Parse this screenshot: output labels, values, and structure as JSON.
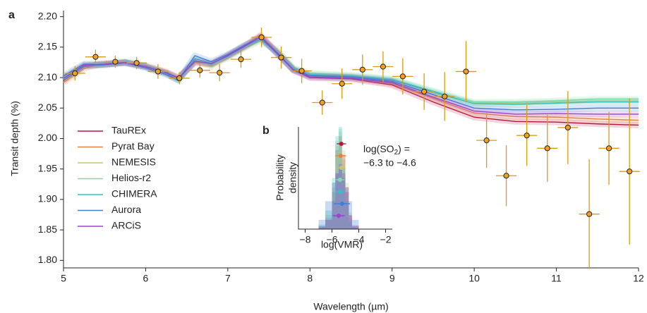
{
  "chart_data": [
    {
      "type": "line",
      "panel": "a",
      "xlabel": "Wavelength (µm)",
      "ylabel": "Transit depth (%)",
      "xlim": [
        5,
        12
      ],
      "ylim": [
        1.79,
        2.21
      ],
      "xticks": [
        5,
        6,
        7,
        8,
        9,
        10,
        11,
        12
      ],
      "yticks": [
        {
          "value": 1.8,
          "label": "1.80"
        },
        1.85,
        {
          "value": 1.9,
          "label": "1.90"
        },
        1.95,
        {
          "value": 2.0,
          "label": "2.00"
        },
        2.05,
        {
          "value": 2.1,
          "label": "2.10"
        },
        2.15,
        {
          "value": 2.2,
          "label": "2.20"
        }
      ],
      "x": [
        5.0,
        5.25,
        5.5,
        5.75,
        6.0,
        6.25,
        6.4,
        6.6,
        6.8,
        7.0,
        7.2,
        7.4,
        7.6,
        7.8,
        8.0,
        8.5,
        9.0,
        9.5,
        10.0,
        10.5,
        11.0,
        11.5,
        12.0
      ],
      "series": [
        {
          "name": "TauREx",
          "color": "#b8173d",
          "values": [
            2.095,
            2.118,
            2.122,
            2.125,
            2.118,
            2.108,
            2.1,
            2.125,
            2.122,
            2.135,
            2.15,
            2.168,
            2.14,
            2.112,
            2.1,
            2.098,
            2.088,
            2.06,
            2.035,
            2.028,
            2.027,
            2.024,
            2.022
          ]
        },
        {
          "name": "Pyrat Bay",
          "color": "#e8803e",
          "values": [
            2.092,
            2.115,
            2.124,
            2.124,
            2.12,
            2.11,
            2.098,
            2.126,
            2.12,
            2.137,
            2.152,
            2.17,
            2.142,
            2.113,
            2.103,
            2.1,
            2.09,
            2.066,
            2.042,
            2.036,
            2.035,
            2.032,
            2.03
          ]
        },
        {
          "name": "NEMESIS",
          "color": "#c9c46a",
          "values": [
            2.098,
            2.12,
            2.12,
            2.126,
            2.117,
            2.106,
            2.097,
            2.13,
            2.118,
            2.132,
            2.148,
            2.16,
            2.145,
            2.115,
            2.106,
            2.103,
            2.097,
            2.075,
            2.058,
            2.058,
            2.06,
            2.062,
            2.062
          ]
        },
        {
          "name": "Helios-r2",
          "color": "#7fdcae",
          "values": [
            2.1,
            2.122,
            2.123,
            2.127,
            2.119,
            2.108,
            2.096,
            2.128,
            2.121,
            2.134,
            2.15,
            2.162,
            2.143,
            2.116,
            2.107,
            2.104,
            2.098,
            2.078,
            2.06,
            2.06,
            2.062,
            2.065,
            2.065
          ]
        },
        {
          "name": "CHIMERA",
          "color": "#2ec2c6",
          "values": [
            2.097,
            2.119,
            2.121,
            2.125,
            2.118,
            2.107,
            2.095,
            2.131,
            2.123,
            2.136,
            2.152,
            2.163,
            2.141,
            2.114,
            2.104,
            2.102,
            2.096,
            2.077,
            2.057,
            2.056,
            2.058,
            2.06,
            2.06
          ]
        },
        {
          "name": "Aurora",
          "color": "#3d7fd6",
          "values": [
            2.103,
            2.122,
            2.121,
            2.124,
            2.116,
            2.105,
            2.096,
            2.136,
            2.126,
            2.138,
            2.153,
            2.166,
            2.139,
            2.113,
            2.103,
            2.101,
            2.094,
            2.072,
            2.05,
            2.047,
            2.048,
            2.05,
            2.05
          ]
        },
        {
          "name": "ARCiS",
          "color": "#9b3fd4",
          "values": [
            2.099,
            2.12,
            2.122,
            2.125,
            2.118,
            2.108,
            2.099,
            2.127,
            2.123,
            2.136,
            2.151,
            2.167,
            2.141,
            2.112,
            2.101,
            2.099,
            2.092,
            2.068,
            2.045,
            2.04,
            2.041,
            2.04,
            2.04
          ]
        }
      ],
      "observed": {
        "color": "#f0a020",
        "errcolor": "#e09a10",
        "x": [
          5.14,
          5.39,
          5.63,
          5.89,
          6.15,
          6.41,
          6.66,
          6.9,
          7.16,
          7.41,
          7.65,
          7.9,
          8.15,
          8.39,
          8.64,
          8.89,
          9.13,
          9.39,
          9.64,
          9.9,
          10.15,
          10.39,
          10.64,
          10.89,
          11.14,
          11.4,
          11.64,
          11.89
        ],
        "values": [
          2.107,
          2.134,
          2.126,
          2.124,
          2.11,
          2.099,
          2.112,
          2.108,
          2.13,
          2.166,
          2.133,
          2.111,
          2.059,
          2.09,
          2.113,
          2.118,
          2.102,
          2.077,
          2.069,
          2.11,
          1.997,
          1.939,
          2.005,
          1.984,
          2.018,
          1.876,
          1.984,
          1.946
        ],
        "xerr": [
          0.125,
          0.125,
          0.125,
          0.125,
          0.125,
          0.125,
          0.125,
          0.125,
          0.125,
          0.125,
          0.125,
          0.125,
          0.125,
          0.125,
          0.125,
          0.125,
          0.125,
          0.125,
          0.125,
          0.125,
          0.125,
          0.125,
          0.125,
          0.125,
          0.125,
          0.125,
          0.125,
          0.125
        ],
        "yerr": [
          0.012,
          0.012,
          0.01,
          0.01,
          0.012,
          0.01,
          0.012,
          0.014,
          0.014,
          0.016,
          0.018,
          0.02,
          0.02,
          0.025,
          0.025,
          0.025,
          0.03,
          0.03,
          0.04,
          0.05,
          0.045,
          0.05,
          0.05,
          0.055,
          0.06,
          0.09,
          0.06,
          0.12
        ]
      }
    },
    {
      "type": "histogram",
      "panel": "b",
      "xlabel": "log(VMR)",
      "ylabel": [
        "Probability",
        "density"
      ],
      "annotation": [
        "log(SO",
        "2",
        ") =",
        "−6.3 to −4.6"
      ],
      "xlim": [
        -8.5,
        -1.5
      ],
      "ylim": [
        0,
        1.1
      ],
      "xticks": [
        {
          "value": -8,
          "label": "−8"
        },
        {
          "value": -6,
          "label": "−6"
        },
        {
          "value": -4,
          "label": "−4"
        },
        {
          "value": -2,
          "label": "−2"
        }
      ],
      "bins": [
        -7,
        -6.5,
        -6,
        -5.75,
        -5.5,
        -5.25,
        -5,
        -4.75,
        -4.5,
        -4
      ],
      "series": [
        {
          "color": "#b8173d",
          "values": [
            0.02,
            0.1,
            0.4,
            0.85,
            1.0,
            0.8,
            0.45,
            0.15,
            0.03
          ],
          "median": -5.3,
          "error": 0.35
        },
        {
          "color": "#e8803e",
          "values": [
            0.03,
            0.12,
            0.45,
            0.9,
            0.95,
            0.75,
            0.4,
            0.12,
            0.02
          ],
          "median": -5.35,
          "error": 0.4
        },
        {
          "color": "#c9c46a",
          "values": [
            0.02,
            0.08,
            0.35,
            0.8,
            1.05,
            0.85,
            0.5,
            0.18,
            0.04
          ],
          "median": -5.3,
          "error": 0.3
        },
        {
          "color": "#7fdcae",
          "values": [
            0.05,
            0.15,
            0.5,
            0.95,
            1.08,
            0.7,
            0.35,
            0.1,
            0.02
          ],
          "median": -5.4,
          "error": 0.35
        },
        {
          "color": "#2ec2c6",
          "values": [
            0.04,
            0.2,
            0.55,
            1.0,
            1.1,
            0.65,
            0.3,
            0.08,
            0.02
          ],
          "median": -5.4,
          "error": 0.3
        },
        {
          "color": "#3d7fd6",
          "values": [
            0.1,
            0.3,
            0.5,
            0.6,
            0.65,
            0.55,
            0.45,
            0.3,
            0.1
          ],
          "median": -5.25,
          "error": 0.6
        },
        {
          "color": "#9b3fd4",
          "values": [
            0.03,
            0.1,
            0.3,
            0.6,
            0.7,
            0.6,
            0.4,
            0.15,
            0.04
          ],
          "median": -5.5,
          "error": 0.45
        }
      ]
    }
  ]
}
